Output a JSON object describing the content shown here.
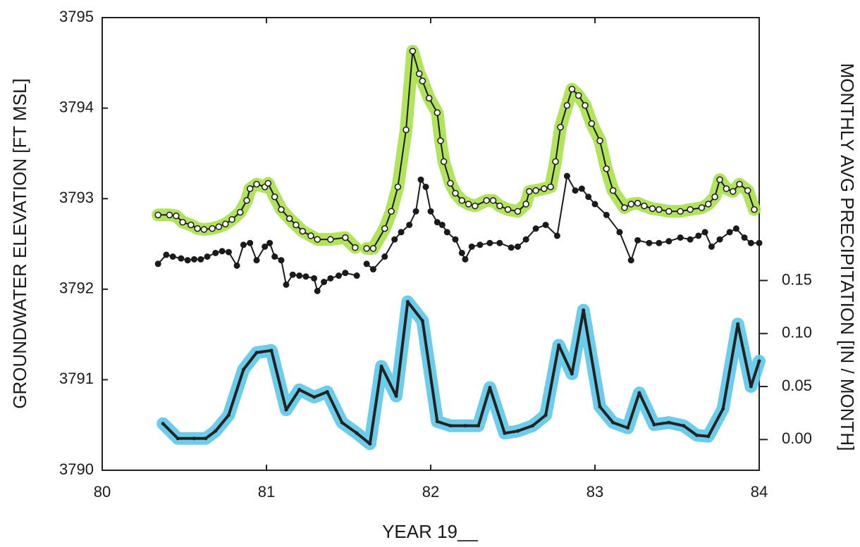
{
  "chart_data": {
    "type": "line",
    "xlabel": "YEAR 19__",
    "ylabel": "GROUNDWATER ELEVATION  [FT MSL]",
    "y2label": "MONTHLY AVG PRECIPITATION  [IN / MONTH]",
    "xlim": [
      80,
      84
    ],
    "xticks": [
      80,
      81,
      82,
      83,
      84
    ],
    "ylim": [
      3790,
      3795
    ],
    "yticks": [
      3790,
      3791,
      3792,
      3793,
      3794,
      3795
    ],
    "y2lim": [
      -0.029,
      0.398
    ],
    "y2ticks": [
      {
        "value": 0,
        "label": "0.00"
      },
      {
        "value": 0.05,
        "label": "0.05"
      },
      {
        "value": 0.1,
        "label": "0.10"
      },
      0.15
    ],
    "series": [
      {
        "color": "#1a1a1a",
        "marker": "open",
        "highlight": "#a8e04a",
        "x": [
          80.34,
          80.41,
          80.45,
          80.49,
          80.54,
          80.58,
          80.62,
          80.67,
          80.71,
          80.75,
          80.79,
          80.84,
          80.88,
          80.9,
          80.94,
          80.99,
          81.01,
          81.05,
          81.09,
          81.14,
          81.18,
          81.22,
          81.27,
          81.31,
          81.39,
          81.48,
          81.54,
          81.58,
          81.61,
          81.65,
          81.72,
          81.76,
          81.8,
          81.85,
          81.89,
          81.93,
          81.95,
          81.99,
          82.04,
          82.06,
          82.08,
          82.12,
          82.15,
          82.19,
          82.23,
          82.27,
          82.34,
          82.38,
          82.42,
          82.47,
          82.53,
          82.58,
          82.6,
          82.64,
          82.69,
          82.73,
          82.76,
          82.79,
          82.83,
          82.86,
          82.9,
          82.94,
          82.98,
          83.03,
          83.07,
          83.11,
          83.18,
          83.22,
          83.26,
          83.3,
          83.35,
          83.39,
          83.45,
          83.52,
          83.58,
          83.65,
          83.69,
          83.73,
          83.76,
          83.8,
          83.84,
          83.88,
          83.93,
          83.97
        ],
        "values": [
          3792.82,
          3792.82,
          3792.81,
          3792.74,
          3792.71,
          3792.67,
          3792.66,
          3792.67,
          3792.69,
          3792.72,
          3792.77,
          3792.85,
          3792.98,
          3793.11,
          3793.16,
          3793.13,
          3793.17,
          3793.02,
          3792.88,
          3792.78,
          3792.71,
          3792.64,
          3792.59,
          3792.55,
          3792.55,
          3792.57,
          3792.46,
          null,
          3792.45,
          3792.45,
          3792.67,
          3792.86,
          3793.13,
          3793.76,
          3794.63,
          3794.38,
          3794.3,
          3794.11,
          3793.95,
          3793.64,
          3793.41,
          3793.17,
          3793.06,
          3792.98,
          3792.94,
          3792.92,
          3792.98,
          3792.98,
          3792.92,
          3792.88,
          3792.86,
          3792.94,
          3793.08,
          3793.09,
          3793.11,
          3793.13,
          3793.41,
          3793.79,
          3794.03,
          3794.21,
          3794.14,
          3794.03,
          3793.83,
          3793.64,
          3793.33,
          3793.09,
          3792.9,
          3792.94,
          3792.95,
          3792.92,
          3792.89,
          3792.88,
          3792.86,
          3792.86,
          3792.88,
          3792.9,
          3792.94,
          3793.02,
          3793.21,
          3793.11,
          3793.08,
          3793.16,
          3793.09,
          3792.88
        ]
      },
      {
        "color": "#1a1a1a",
        "marker": "filled",
        "x": [
          80.34,
          80.39,
          80.43,
          80.48,
          80.52,
          80.56,
          80.6,
          80.64,
          80.69,
          80.73,
          80.77,
          80.82,
          80.86,
          80.9,
          80.94,
          80.99,
          81.02,
          81.05,
          81.09,
          81.12,
          81.16,
          81.2,
          81.24,
          81.29,
          81.31,
          81.35,
          81.39,
          81.44,
          81.48,
          81.55,
          81.58,
          81.61,
          81.65,
          81.72,
          81.78,
          81.82,
          81.87,
          81.91,
          81.94,
          81.97,
          82.0,
          82.04,
          82.07,
          82.1,
          82.15,
          82.19,
          82.21,
          82.25,
          82.3,
          82.36,
          82.42,
          82.49,
          82.53,
          82.58,
          82.64,
          82.7,
          82.77,
          82.83,
          82.88,
          82.92,
          82.96,
          83.0,
          83.07,
          83.15,
          83.22,
          83.26,
          83.33,
          83.39,
          83.45,
          83.52,
          83.58,
          83.63,
          83.67,
          83.71,
          83.76,
          83.82,
          83.86,
          83.91,
          83.95,
          84.0
        ],
        "values": [
          3792.28,
          3792.38,
          3792.36,
          3792.34,
          3792.32,
          3792.33,
          3792.33,
          3792.36,
          3792.4,
          3792.42,
          3792.41,
          3792.26,
          3792.49,
          3792.51,
          3792.32,
          3792.47,
          3792.51,
          3792.36,
          3792.32,
          3792.05,
          3792.16,
          3792.15,
          3792.14,
          3792.12,
          3791.98,
          3792.08,
          3792.12,
          3792.15,
          3792.18,
          3792.15,
          null,
          3792.28,
          3792.22,
          3792.36,
          3792.55,
          3792.63,
          3792.71,
          3792.86,
          3793.21,
          3793.13,
          3792.86,
          3792.74,
          3792.71,
          3792.63,
          3792.55,
          3792.4,
          3792.33,
          3792.47,
          3792.49,
          3792.51,
          3792.51,
          3792.46,
          3792.47,
          3792.55,
          3792.67,
          3792.71,
          3792.59,
          3793.25,
          3793.09,
          3793.11,
          3793.02,
          3792.94,
          3792.82,
          3792.63,
          3792.32,
          3792.54,
          3792.51,
          3792.51,
          3792.53,
          3792.57,
          3792.55,
          3792.59,
          3792.63,
          3792.47,
          3792.55,
          3792.63,
          3792.67,
          3792.57,
          3792.51,
          3792.51
        ]
      },
      {
        "color": "#222222",
        "marker": "dot",
        "highlight": "#5cc8e8",
        "axis": "y2",
        "x": [
          80.37,
          80.46,
          80.56,
          80.63,
          80.69,
          80.77,
          80.86,
          80.94,
          81.03,
          81.12,
          81.2,
          81.29,
          81.37,
          81.46,
          81.55,
          81.63,
          81.7,
          81.79,
          81.86,
          81.95,
          82.04,
          82.12,
          82.21,
          82.29,
          82.36,
          82.45,
          82.53,
          82.62,
          82.7,
          82.78,
          82.86,
          82.93,
          83.03,
          83.11,
          83.2,
          83.27,
          83.36,
          83.45,
          83.54,
          83.62,
          83.69,
          83.78,
          83.87,
          83.95,
          84.0
        ],
        "values": [
          0.015,
          0.001,
          0.001,
          0.001,
          0.008,
          0.023,
          0.066,
          0.082,
          0.084,
          0.028,
          0.047,
          0.04,
          0.045,
          0.016,
          0.006,
          -0.004,
          0.069,
          0.041,
          0.13,
          0.112,
          0.017,
          0.013,
          0.013,
          0.013,
          0.049,
          0.006,
          0.008,
          0.013,
          0.023,
          0.089,
          0.062,
          0.122,
          0.031,
          0.016,
          0.011,
          0.044,
          0.014,
          0.016,
          0.013,
          0.004,
          0.003,
          0.029,
          0.109,
          0.05,
          0.074
        ]
      }
    ]
  }
}
